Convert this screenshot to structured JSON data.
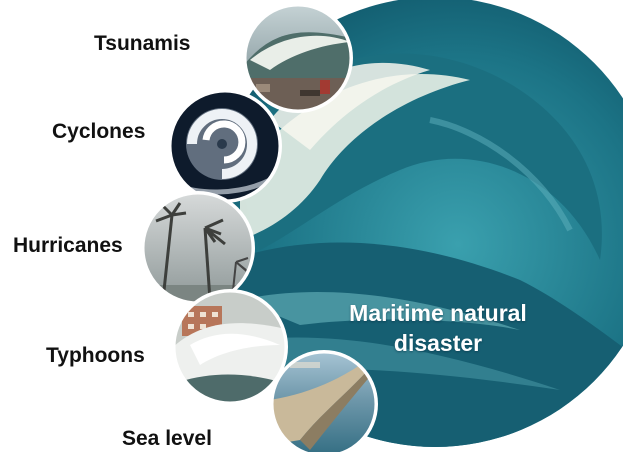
{
  "center": {
    "title_line1": "Maritime natural",
    "title_line2": "disaster"
  },
  "items": [
    {
      "label": "Tsunamis"
    },
    {
      "label": "Cyclones"
    },
    {
      "label": "Hurricanes"
    },
    {
      "label": "Typhoons"
    },
    {
      "label": "Sea level"
    }
  ],
  "colors": {
    "ocean_deep": "#0f5a6e",
    "ocean_mid": "#2a8ea0",
    "foam": "#f2f6f4",
    "label_text": "#111111",
    "title_text": "#ffffff"
  }
}
